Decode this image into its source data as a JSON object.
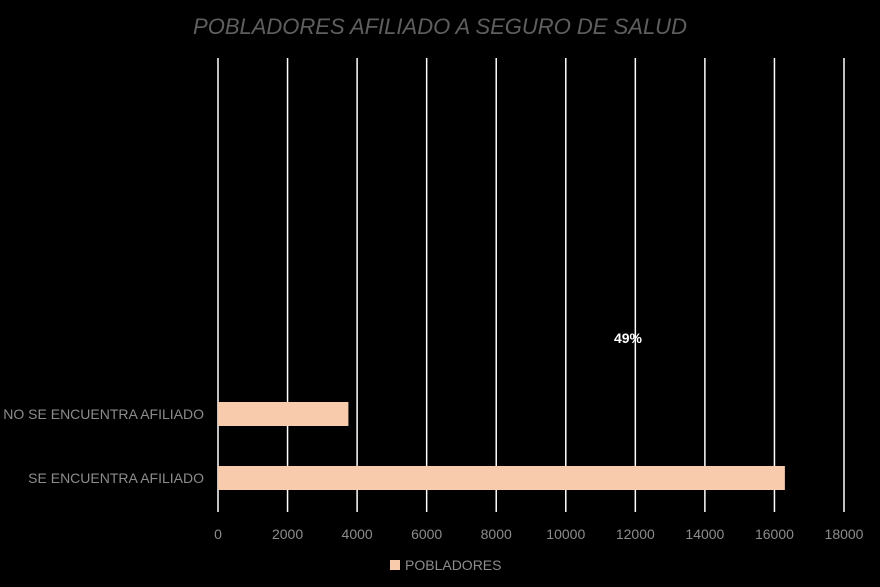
{
  "chart_data": {
    "type": "bar",
    "orientation": "horizontal",
    "title": "POBLADORES AFILIADO A SEGURO DE SALUD",
    "categories": [
      "SE ENCUENTRA AFILIADO",
      "NO SE ENCUENTRA AFILIADO"
    ],
    "series": [
      {
        "name": "POBLADORES",
        "values": [
          16300,
          3750
        ],
        "color": "#f8cbad"
      }
    ],
    "xlim": [
      0,
      18000
    ],
    "xticks": [
      0,
      2000,
      4000,
      6000,
      8000,
      10000,
      12000,
      14000,
      16000,
      18000
    ],
    "grid": true,
    "legend": "bottom",
    "annotation": "49%",
    "colors": {
      "background": "#000000",
      "gridline": "#ffffff",
      "text": "#8c8c8c",
      "title": "#5f5f5f"
    }
  }
}
